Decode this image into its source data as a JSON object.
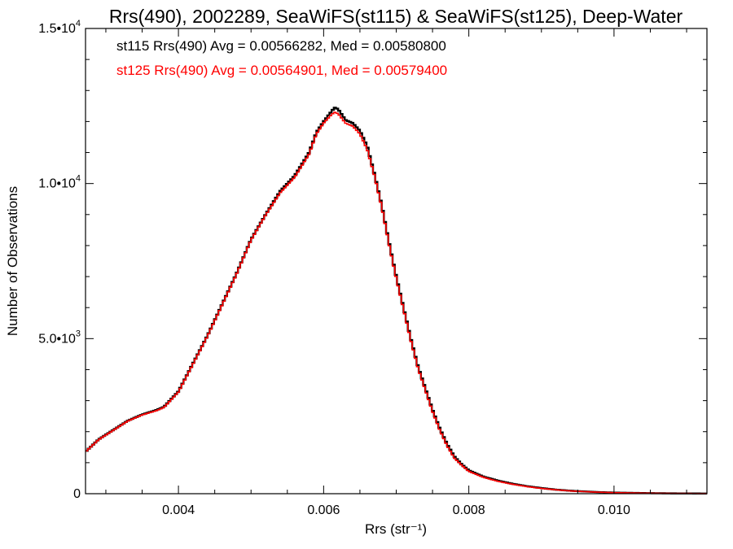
{
  "chart_data": {
    "type": "line",
    "title": "Rrs(490), 2002289, SeaWiFS(st115) & SeaWiFS(st125), Deep-Water",
    "xlabel": "Rrs (str⁻¹)",
    "ylabel": "Number of Observations",
    "xlim": [
      0.00272,
      0.01128
    ],
    "ylim": [
      0,
      15000
    ],
    "x_ticks": [
      0.004,
      0.006,
      0.008,
      0.01
    ],
    "x_tick_labels": [
      "0.004",
      "0.006",
      "0.008",
      "0.010"
    ],
    "y_ticks": [
      0,
      5000,
      10000,
      15000
    ],
    "y_tick_labels": [
      {
        "mantissa": "0",
        "exp": ""
      },
      {
        "mantissa": "5.0•10",
        "exp": "3"
      },
      {
        "mantissa": "1.0•10",
        "exp": "4"
      },
      {
        "mantissa": "1.5•10",
        "exp": "4"
      }
    ],
    "annotations": [
      {
        "text": "st115 Rrs(490) Avg = 0.00566282, Med = 0.00580800",
        "color": "#000000"
      },
      {
        "text": "st125 Rrs(490) Avg = 0.00564901, Med = 0.00579400",
        "color": "#ff0000"
      }
    ],
    "grid": false,
    "series": [
      {
        "name": "st115",
        "color": "#000000",
        "style": "step",
        "x": [
          0.00272,
          0.0029,
          0.0031,
          0.0033,
          0.0035,
          0.0037,
          0.0038,
          0.004,
          0.0042,
          0.0044,
          0.0046,
          0.0048,
          0.005,
          0.0052,
          0.0054,
          0.0056,
          0.0058,
          0.0059,
          0.006,
          0.0061,
          0.00615,
          0.0062,
          0.0063,
          0.0064,
          0.0065,
          0.0066,
          0.0067,
          0.0068,
          0.0069,
          0.007,
          0.0071,
          0.0072,
          0.0073,
          0.0074,
          0.0075,
          0.0076,
          0.0077,
          0.0078,
          0.0079,
          0.008,
          0.0082,
          0.0084,
          0.0086,
          0.0088,
          0.009,
          0.0092,
          0.0094,
          0.0096,
          0.0098,
          0.01,
          0.0104,
          0.0108,
          0.01128
        ],
        "y": [
          1350,
          1750,
          2050,
          2350,
          2550,
          2700,
          2800,
          3300,
          4200,
          5100,
          6100,
          7100,
          8200,
          9000,
          9750,
          10250,
          11000,
          11650,
          12000,
          12300,
          12450,
          12400,
          12050,
          11950,
          11700,
          11200,
          10300,
          9300,
          8100,
          7000,
          6000,
          5000,
          4100,
          3400,
          2700,
          2100,
          1600,
          1200,
          950,
          750,
          550,
          420,
          320,
          240,
          180,
          130,
          95,
          70,
          50,
          35,
          20,
          10,
          5
        ]
      },
      {
        "name": "st125",
        "color": "#ff0000",
        "style": "step",
        "x": [
          0.00272,
          0.0029,
          0.0031,
          0.0033,
          0.0035,
          0.0037,
          0.0038,
          0.004,
          0.0042,
          0.0044,
          0.0046,
          0.0048,
          0.005,
          0.0052,
          0.0054,
          0.0056,
          0.0058,
          0.0059,
          0.006,
          0.0061,
          0.00615,
          0.0062,
          0.0063,
          0.0064,
          0.0065,
          0.0066,
          0.0067,
          0.0068,
          0.0069,
          0.007,
          0.0071,
          0.0072,
          0.0073,
          0.0074,
          0.0075,
          0.0076,
          0.0077,
          0.0078,
          0.0079,
          0.008,
          0.0082,
          0.0084,
          0.0086,
          0.0088,
          0.009,
          0.0092,
          0.0094,
          0.0096,
          0.0098,
          0.01,
          0.0104,
          0.0108,
          0.01128
        ],
        "y": [
          1350,
          1740,
          2040,
          2340,
          2540,
          2680,
          2780,
          3280,
          4180,
          5080,
          6080,
          7080,
          8180,
          8980,
          9700,
          10200,
          10950,
          11600,
          11950,
          12200,
          12300,
          12250,
          11950,
          11850,
          11600,
          11100,
          10250,
          9250,
          8050,
          6950,
          5950,
          4950,
          4050,
          3350,
          2650,
          2050,
          1550,
          1150,
          920,
          720,
          530,
          400,
          305,
          230,
          170,
          125,
          90,
          66,
          48,
          33,
          19,
          9,
          5
        ]
      }
    ]
  }
}
